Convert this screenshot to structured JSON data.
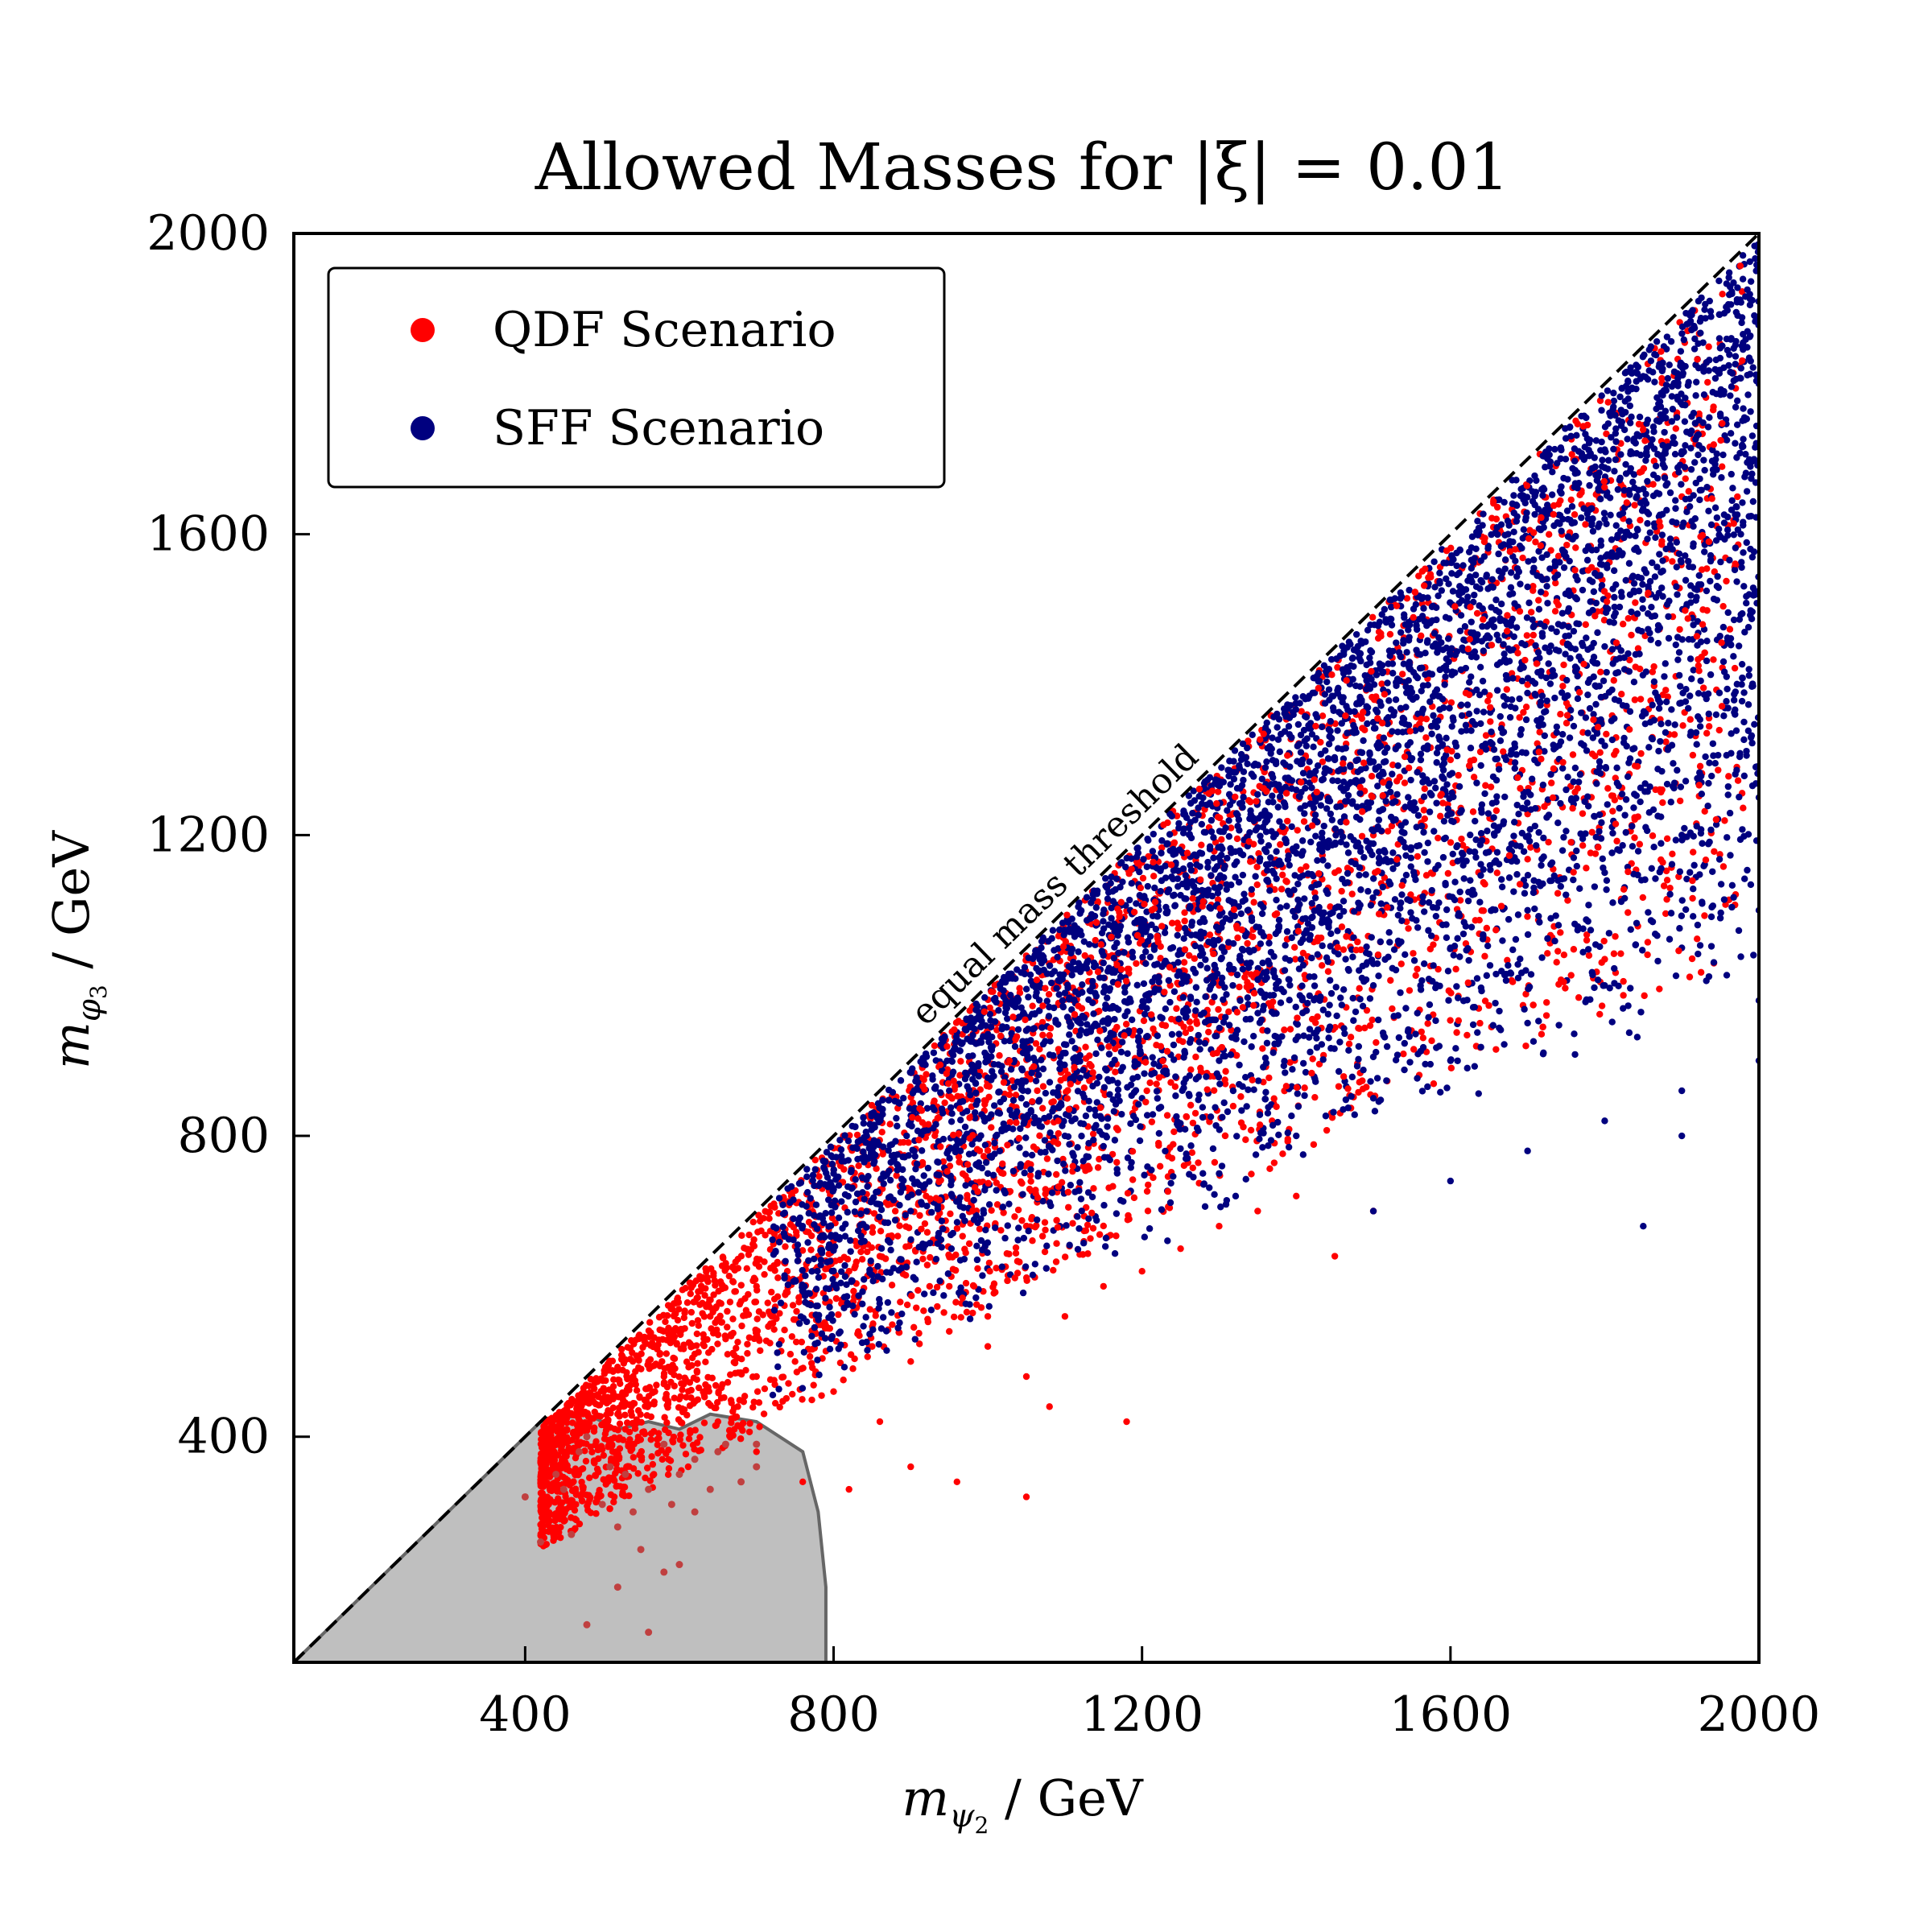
{
  "chart_data": {
    "type": "scatter",
    "title": "Allowed Masses for |ξ| = 0.01",
    "xlabel": "m_ψ2 / GeV",
    "ylabel": "m_φ3 / GeV",
    "xlim": [
      100,
      2000
    ],
    "ylim": [
      100,
      2000
    ],
    "xticks": [
      400,
      800,
      1200,
      1600,
      2000
    ],
    "yticks": [
      400,
      800,
      1200,
      1600,
      2000
    ],
    "xtick_labels": [
      "400",
      "800",
      "1200",
      "1600",
      "2000"
    ],
    "ytick_labels": [
      "400",
      "800",
      "1200",
      "1600",
      "2000"
    ],
    "legend_position": "top-left",
    "series": [
      {
        "name": "QDF Scenario",
        "color": "#ff0000",
        "region": "dense band below the diagonal, concentrated at low masses (m_ψ2 ≈ 400–1000 GeV, m_φ3 ≈ 300–800 GeV), sparser up to 2000 GeV",
        "points": [
          [
            430,
            380
          ],
          [
            470,
            420
          ],
          [
            500,
            450
          ],
          [
            520,
            430
          ],
          [
            540,
            480
          ],
          [
            560,
            500
          ],
          [
            580,
            470
          ],
          [
            600,
            540
          ],
          [
            620,
            510
          ],
          [
            640,
            560
          ],
          [
            660,
            530
          ],
          [
            680,
            580
          ],
          [
            700,
            600
          ],
          [
            720,
            560
          ],
          [
            740,
            620
          ],
          [
            760,
            590
          ],
          [
            780,
            640
          ],
          [
            800,
            660
          ],
          [
            820,
            620
          ],
          [
            840,
            680
          ],
          [
            860,
            640
          ],
          [
            880,
            700
          ],
          [
            900,
            660
          ],
          [
            920,
            720
          ],
          [
            950,
            600
          ],
          [
            980,
            700
          ],
          [
            1000,
            560
          ],
          [
            1020,
            750
          ],
          [
            1050,
            680
          ],
          [
            1080,
            800
          ],
          [
            1100,
            760
          ],
          [
            1150,
            860
          ],
          [
            1200,
            900
          ],
          [
            1250,
            950
          ],
          [
            1300,
            1000
          ],
          [
            1350,
            1050
          ],
          [
            1400,
            1100
          ],
          [
            1450,
            1150
          ],
          [
            1500,
            1200
          ],
          [
            1600,
            1300
          ],
          [
            1700,
            1400
          ],
          [
            1800,
            1500
          ],
          [
            1900,
            1650
          ],
          [
            600,
            450
          ],
          [
            650,
            420
          ],
          [
            700,
            480
          ],
          [
            750,
            500
          ],
          [
            800,
            460
          ],
          [
            850,
            520
          ],
          [
            900,
            500
          ],
          [
            950,
            540
          ],
          [
            1000,
            520
          ],
          [
            1050,
            480
          ],
          [
            1100,
            560
          ],
          [
            1150,
            600
          ],
          [
            1200,
            620
          ],
          [
            1250,
            650
          ],
          [
            1300,
            680
          ],
          [
            1350,
            700
          ],
          [
            1400,
            720
          ],
          [
            1450,
            640
          ],
          [
            1500,
            700
          ],
          [
            700,
            380
          ],
          [
            760,
            340
          ],
          [
            820,
            330
          ],
          [
            900,
            360
          ],
          [
            1050,
            320
          ],
          [
            960,
            340
          ],
          [
            1180,
            420
          ],
          [
            1080,
            440
          ],
          [
            860,
            420
          ]
        ]
      },
      {
        "name": "SFF Scenario",
        "color": "#00007f",
        "region": "dense band below the diagonal spanning m_ψ2 ≈ 750–2000 GeV, m_φ3 ≈ 600–1980 GeV",
        "points": [
          [
            800,
            750
          ],
          [
            850,
            780
          ],
          [
            900,
            820
          ],
          [
            950,
            860
          ],
          [
            1000,
            900
          ],
          [
            1050,
            940
          ],
          [
            1100,
            990
          ],
          [
            1150,
            1030
          ],
          [
            1200,
            1080
          ],
          [
            1250,
            1120
          ],
          [
            1300,
            1170
          ],
          [
            1350,
            1210
          ],
          [
            1400,
            1260
          ],
          [
            1450,
            1300
          ],
          [
            1500,
            1350
          ],
          [
            1550,
            1390
          ],
          [
            1600,
            1440
          ],
          [
            1650,
            1480
          ],
          [
            1700,
            1530
          ],
          [
            1750,
            1570
          ],
          [
            1800,
            1620
          ],
          [
            1850,
            1660
          ],
          [
            1900,
            1710
          ],
          [
            1950,
            1760
          ],
          [
            2000,
            1800
          ],
          [
            900,
            700
          ],
          [
            1000,
            750
          ],
          [
            1100,
            800
          ],
          [
            1200,
            850
          ],
          [
            1300,
            900
          ],
          [
            1400,
            950
          ],
          [
            1500,
            1000
          ],
          [
            1600,
            1050
          ],
          [
            1700,
            1100
          ],
          [
            1800,
            1150
          ],
          [
            1900,
            1200
          ],
          [
            2000,
            1250
          ],
          [
            1300,
            750
          ],
          [
            1400,
            800
          ],
          [
            1500,
            850
          ],
          [
            1600,
            900
          ],
          [
            1700,
            950
          ],
          [
            1800,
            1000
          ],
          [
            1900,
            1050
          ],
          [
            2000,
            1100
          ],
          [
            1500,
            700
          ],
          [
            1600,
            740
          ],
          [
            1700,
            780
          ],
          [
            1800,
            820
          ],
          [
            1900,
            860
          ],
          [
            2000,
            900
          ],
          [
            1850,
            680
          ],
          [
            1900,
            800
          ],
          [
            2000,
            980
          ]
        ]
      }
    ],
    "excluded_region": {
      "label": "excluded (grey)",
      "boundary": [
        [
          100,
          100
        ],
        [
          420,
          420
        ],
        [
          480,
          430
        ],
        [
          520,
          410
        ],
        [
          560,
          420
        ],
        [
          600,
          410
        ],
        [
          640,
          430
        ],
        [
          700,
          420
        ],
        [
          760,
          380
        ],
        [
          780,
          300
        ],
        [
          790,
          200
        ],
        [
          790,
          100
        ]
      ],
      "color": "#bfbfbf",
      "edge_color": "#666666",
      "points_inside": [
        [
          450,
          330
        ],
        [
          470,
          380
        ],
        [
          480,
          400
        ],
        [
          500,
          310
        ],
        [
          510,
          360
        ],
        [
          520,
          280
        ],
        [
          530,
          350
        ],
        [
          540,
          300
        ],
        [
          560,
          330
        ],
        [
          580,
          390
        ],
        [
          600,
          350
        ],
        [
          620,
          370
        ],
        [
          640,
          330
        ],
        [
          660,
          390
        ],
        [
          680,
          340
        ],
        [
          700,
          360
        ],
        [
          400,
          320
        ],
        [
          420,
          260
        ],
        [
          460,
          270
        ],
        [
          550,
          250
        ],
        [
          580,
          220
        ],
        [
          600,
          230
        ],
        [
          520,
          200
        ],
        [
          480,
          150
        ],
        [
          560,
          140
        ],
        [
          620,
          300
        ],
        [
          650,
          380
        ],
        [
          700,
          390
        ],
        [
          440,
          350
        ],
        [
          590,
          310
        ]
      ]
    },
    "annotation": {
      "text": "equal mass threshold",
      "line": [
        [
          100,
          100
        ],
        [
          2000,
          2000
        ]
      ],
      "line_style": "dashed"
    }
  }
}
